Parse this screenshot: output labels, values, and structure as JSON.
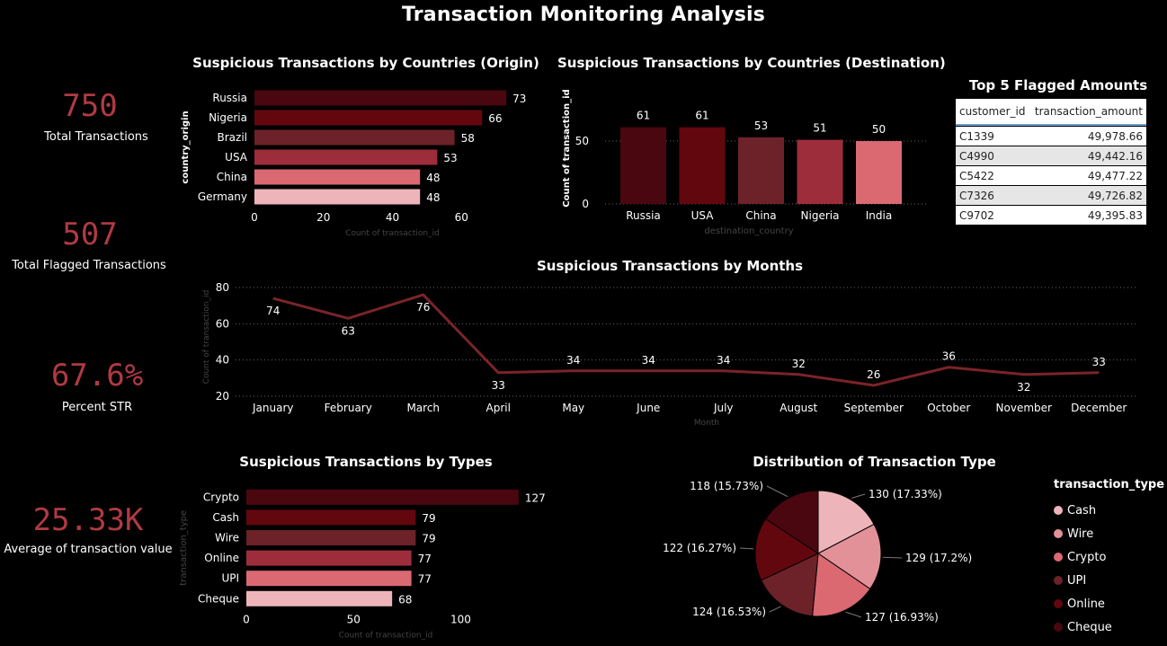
{
  "title": "Transaction Monitoring Analysis",
  "kpis": [
    {
      "value": "750",
      "label": "Total Transactions"
    },
    {
      "value": "507",
      "label": "Total Flagged Transactions"
    },
    {
      "value": "67.6%",
      "label": "Percent STR"
    },
    {
      "value": "25.33K",
      "label": "Average of transaction value"
    }
  ],
  "colors": {
    "shade1": "#4a0710",
    "shade2": "#63070f",
    "shade3": "#6c2228",
    "shade4": "#9e2d3b",
    "shade5": "#db6972",
    "shade6": "#edb5ba",
    "line": "#7a2428",
    "kpi": "#b03a42",
    "muted": "#444444"
  },
  "top5": {
    "title": "Top 5 Flagged Amounts",
    "columns": [
      "customer_id",
      "transaction_amount"
    ],
    "rows": [
      [
        "C1339",
        "49,978.66"
      ],
      [
        "C4990",
        "49,442.16"
      ],
      [
        "C5422",
        "49,477.22"
      ],
      [
        "C7326",
        "49,726.82"
      ],
      [
        "C9702",
        "49,395.83"
      ]
    ]
  },
  "legend": {
    "title": "transaction_type",
    "items": [
      "Cash",
      "Wire",
      "Crypto",
      "UPI",
      "Online",
      "Cheque"
    ]
  },
  "chart_data": [
    {
      "type": "bar",
      "orientation": "horizontal",
      "title": "Suspicious Transactions by Countries (Origin)",
      "xlabel": "Count of transaction_id",
      "ylabel": "country_origin",
      "categories": [
        "Russia",
        "Nigeria",
        "Brazil",
        "USA",
        "China",
        "Germany"
      ],
      "values": [
        73,
        66,
        58,
        53,
        48,
        48
      ],
      "xlim": [
        0,
        80
      ],
      "ticks": [
        0,
        20,
        40,
        60
      ],
      "tick_labels": [
        "0",
        "20",
        "40",
        "60"
      ]
    },
    {
      "type": "bar",
      "orientation": "vertical",
      "title": "Suspicious Transactions by Countries (Destination)",
      "xlabel": "destination_country",
      "ylabel": "Count of transaction_id",
      "categories": [
        "Russia",
        "USA",
        "China",
        "Nigeria",
        "India"
      ],
      "values": [
        61,
        61,
        53,
        51,
        50
      ],
      "ylim": [
        0,
        70
      ],
      "ticks": [
        0,
        50
      ],
      "tick_labels": [
        "0",
        "50"
      ]
    },
    {
      "type": "line",
      "title": "Suspicious Transactions by Months",
      "xlabel": "Month",
      "ylabel": "Count of transaction_id",
      "categories": [
        "January",
        "February",
        "March",
        "April",
        "May",
        "June",
        "July",
        "August",
        "September",
        "October",
        "November",
        "December"
      ],
      "values": [
        74,
        63,
        76,
        33,
        34,
        34,
        34,
        32,
        26,
        36,
        32,
        33
      ],
      "label_position": [
        "below",
        "below",
        "below",
        "below",
        "above",
        "above",
        "above",
        "above",
        "above",
        "above",
        "below",
        "above"
      ],
      "ylim": [
        20,
        80
      ],
      "ticks": [
        20,
        40,
        60,
        80
      ],
      "tick_labels": [
        "20",
        "40",
        "60",
        "80"
      ]
    },
    {
      "type": "bar",
      "orientation": "horizontal",
      "title": "Suspicious Transactions by Types",
      "xlabel": "Count of transaction_id",
      "ylabel": "transaction_type",
      "categories": [
        "Crypto",
        "Cash",
        "Wire",
        "Online",
        "UPI",
        "Cheque"
      ],
      "values": [
        127,
        79,
        79,
        77,
        77,
        68
      ],
      "xlim": [
        0,
        130
      ],
      "ticks": [
        0,
        50,
        100
      ],
      "tick_labels": [
        "0",
        "50",
        "100"
      ]
    },
    {
      "type": "pie",
      "title": "Distribution of Transaction Type",
      "categories": [
        "Cash",
        "Wire",
        "Crypto",
        "UPI",
        "Online",
        "Cheque"
      ],
      "values": [
        130,
        129,
        127,
        124,
        122,
        118
      ],
      "labels": [
        "130 (17.33%)",
        "129 (17.2%)",
        "127 (16.93%)",
        "124 (16.53%)",
        "122 (16.27%)",
        "118 (15.73%)"
      ]
    }
  ]
}
